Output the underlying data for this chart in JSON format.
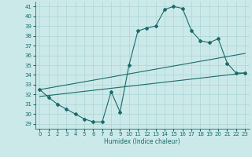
{
  "title": "",
  "xlabel": "Humidex (Indice chaleur)",
  "xlim": [
    -0.5,
    23.5
  ],
  "ylim": [
    28.5,
    41.5
  ],
  "yticks": [
    29,
    30,
    31,
    32,
    33,
    34,
    35,
    36,
    37,
    38,
    39,
    40,
    41
  ],
  "xticks": [
    0,
    1,
    2,
    3,
    4,
    5,
    6,
    7,
    8,
    9,
    10,
    11,
    12,
    13,
    14,
    15,
    16,
    17,
    18,
    19,
    20,
    21,
    22,
    23
  ],
  "bg_color": "#cce9e9",
  "line_color": "#1a6b6b",
  "grid_color": "#aad4d4",
  "line1_x": [
    0,
    1,
    2,
    3,
    4,
    5,
    6,
    7,
    8,
    9,
    10,
    11,
    12,
    13,
    14,
    15,
    16,
    17,
    18,
    19,
    20,
    21,
    22,
    23
  ],
  "line1_y": [
    32.5,
    31.7,
    31.0,
    30.5,
    30.0,
    29.5,
    29.2,
    29.2,
    32.3,
    30.2,
    35.0,
    38.5,
    38.8,
    39.0,
    40.7,
    41.0,
    40.8,
    38.5,
    37.5,
    37.3,
    37.7,
    35.2,
    34.2,
    34.2
  ],
  "line2_x": [
    0,
    23
  ],
  "line2_y": [
    31.8,
    34.2
  ],
  "line3_x": [
    0,
    23
  ],
  "line3_y": [
    32.5,
    36.2
  ],
  "marker": "D",
  "markersize": 2.0,
  "linewidth": 0.8,
  "tick_labelsize": 5,
  "xlabel_fontsize": 5.5
}
